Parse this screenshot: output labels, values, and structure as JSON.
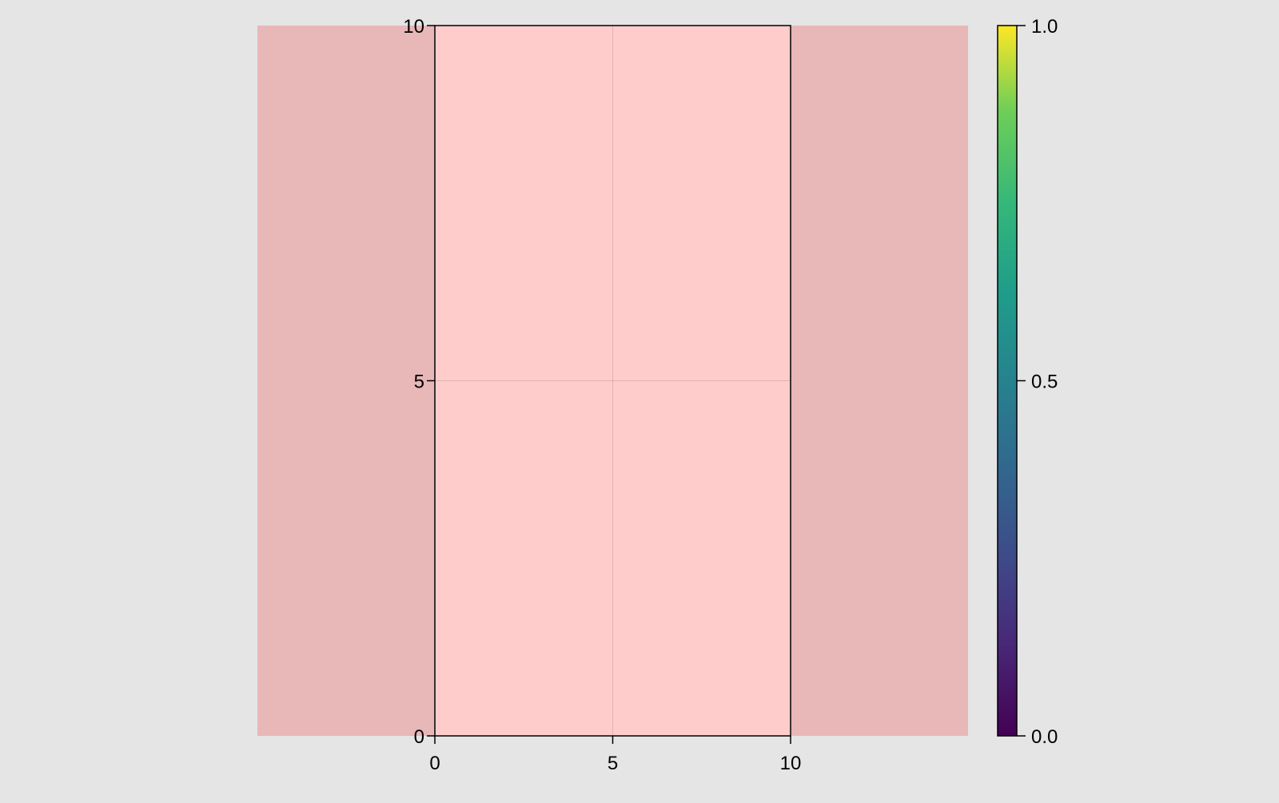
{
  "chart_data": {
    "type": "heatmap",
    "title": "",
    "xlabel": "",
    "ylabel": "",
    "xlim": [
      0,
      10
    ],
    "ylim": [
      0,
      10
    ],
    "x_ticks": [
      "0",
      "5",
      "10"
    ],
    "y_ticks": [
      "0",
      "5",
      "10"
    ],
    "grid": true,
    "background_region_color": "#e8b7b7",
    "axis_background_color": "#ffcccc",
    "figure_background_color": "#e5e5e5",
    "colorbar": {
      "colormap": "viridis",
      "range": [
        0.0,
        1.0
      ],
      "ticks": [
        "0.0",
        "0.5",
        "1.0"
      ],
      "position": "right"
    }
  }
}
